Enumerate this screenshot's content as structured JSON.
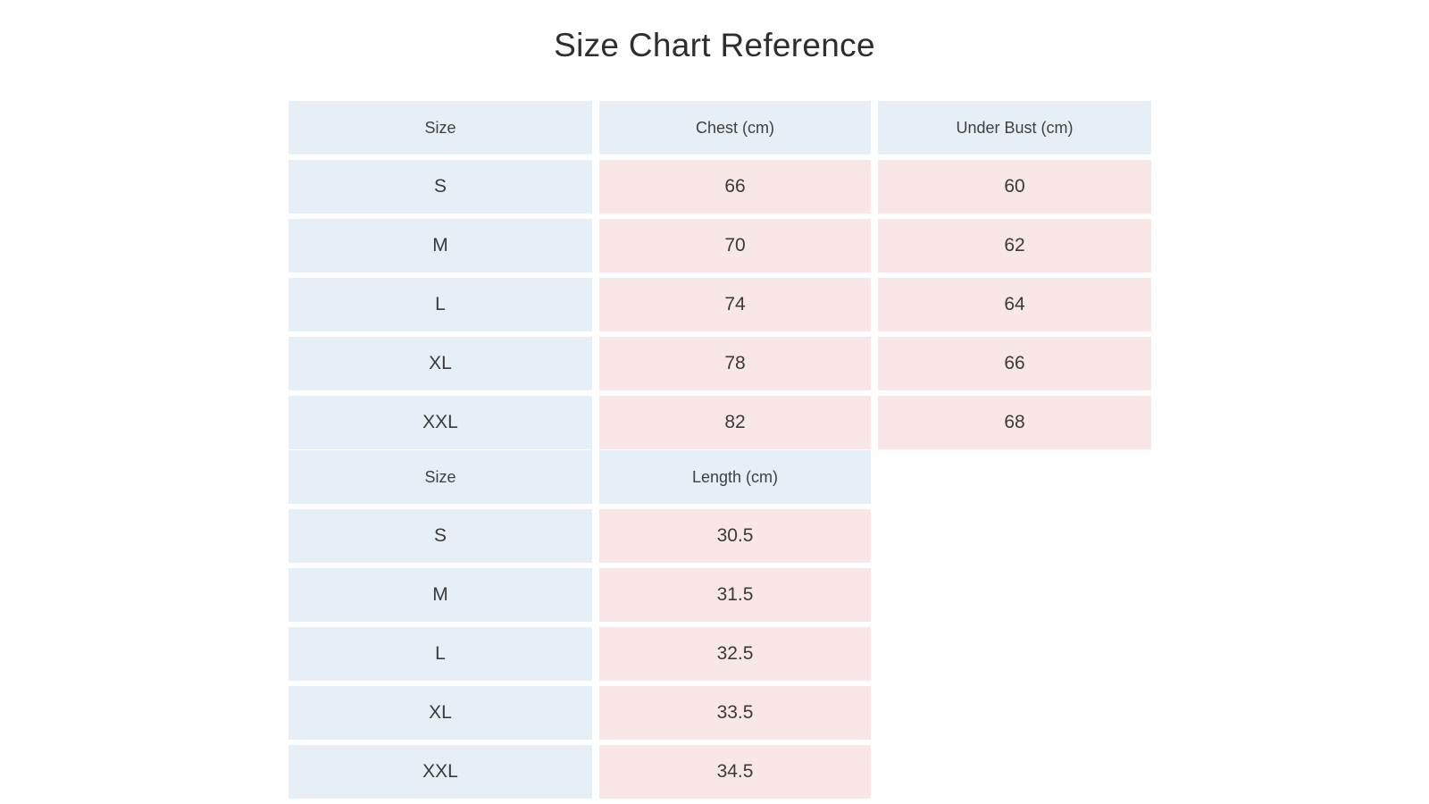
{
  "title": "Size Chart Reference",
  "colors": {
    "header_bg": "#e6eff5",
    "size_bg": "#e6eff5",
    "value_bg": "#f9e7e7"
  },
  "table_bust": {
    "headers": [
      "Size",
      "Chest (cm)",
      "Under Bust (cm)"
    ],
    "rows": [
      [
        "S",
        "66",
        "60"
      ],
      [
        "M",
        "70",
        "62"
      ],
      [
        "L",
        "74",
        "64"
      ],
      [
        "XL",
        "78",
        "66"
      ],
      [
        "XXL",
        "82",
        "68"
      ]
    ]
  },
  "table_length": {
    "headers": [
      "Size",
      "Length (cm)"
    ],
    "rows": [
      [
        "S",
        "30.5"
      ],
      [
        "M",
        "31.5"
      ],
      [
        "L",
        "32.5"
      ],
      [
        "XL",
        "33.5"
      ],
      [
        "XXL",
        "34.5"
      ]
    ]
  }
}
